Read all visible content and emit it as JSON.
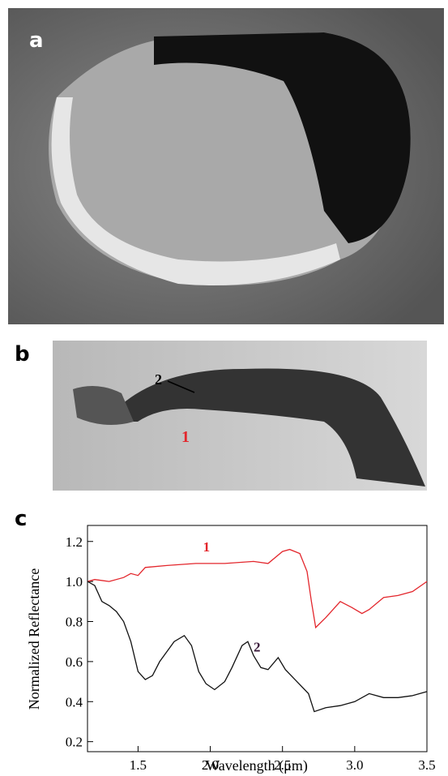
{
  "panel_labels": [
    "a",
    "b",
    "c"
  ],
  "image_b_labels": [
    "2",
    "1"
  ],
  "chart_data": {
    "type": "line",
    "xlabel": "Wavelength (μm)",
    "ylabel": "Normalized Reflectance",
    "xlim": [
      1.15,
      3.5
    ],
    "ylim": [
      0.15,
      1.28
    ],
    "xticks": [
      1.5,
      {
        "value": 2,
        "label": "2.0"
      },
      2.5,
      {
        "value": 3,
        "label": "3.0"
      },
      3.5
    ],
    "yticks": [
      0.2,
      0.4,
      0.6,
      0.8,
      {
        "value": 1,
        "label": "1.0"
      },
      1.2
    ],
    "series": [
      {
        "name": "1",
        "color": "#e3262c",
        "x": [
          1.15,
          1.2,
          1.3,
          1.4,
          1.45,
          1.5,
          1.55,
          1.7,
          1.9,
          2.1,
          2.3,
          2.4,
          2.5,
          2.55,
          2.62,
          2.67,
          2.7,
          2.73,
          2.8,
          2.9,
          2.98,
          3.05,
          3.1,
          3.2,
          3.3,
          3.4,
          3.5
        ],
        "values": [
          1.0,
          1.01,
          1.0,
          1.02,
          1.04,
          1.03,
          1.07,
          1.08,
          1.09,
          1.09,
          1.1,
          1.09,
          1.15,
          1.16,
          1.14,
          1.05,
          0.9,
          0.77,
          0.82,
          0.9,
          0.87,
          0.84,
          0.86,
          0.92,
          0.93,
          0.95,
          1.0
        ]
      },
      {
        "name": "2",
        "color": "#111111",
        "x": [
          1.15,
          1.2,
          1.25,
          1.3,
          1.35,
          1.4,
          1.45,
          1.5,
          1.55,
          1.6,
          1.65,
          1.7,
          1.75,
          1.82,
          1.87,
          1.92,
          1.97,
          2.03,
          2.1,
          2.15,
          2.22,
          2.26,
          2.3,
          2.35,
          2.4,
          2.47,
          2.52,
          2.6,
          2.68,
          2.72,
          2.8,
          2.9,
          3.0,
          3.1,
          3.2,
          3.3,
          3.4,
          3.5
        ],
        "values": [
          1.0,
          0.98,
          0.9,
          0.88,
          0.85,
          0.8,
          0.7,
          0.55,
          0.51,
          0.53,
          0.6,
          0.65,
          0.7,
          0.73,
          0.68,
          0.55,
          0.49,
          0.46,
          0.5,
          0.57,
          0.68,
          0.7,
          0.63,
          0.57,
          0.56,
          0.62,
          0.56,
          0.5,
          0.44,
          0.35,
          0.37,
          0.38,
          0.4,
          0.44,
          0.42,
          0.42,
          0.43,
          0.45
        ]
      }
    ]
  }
}
